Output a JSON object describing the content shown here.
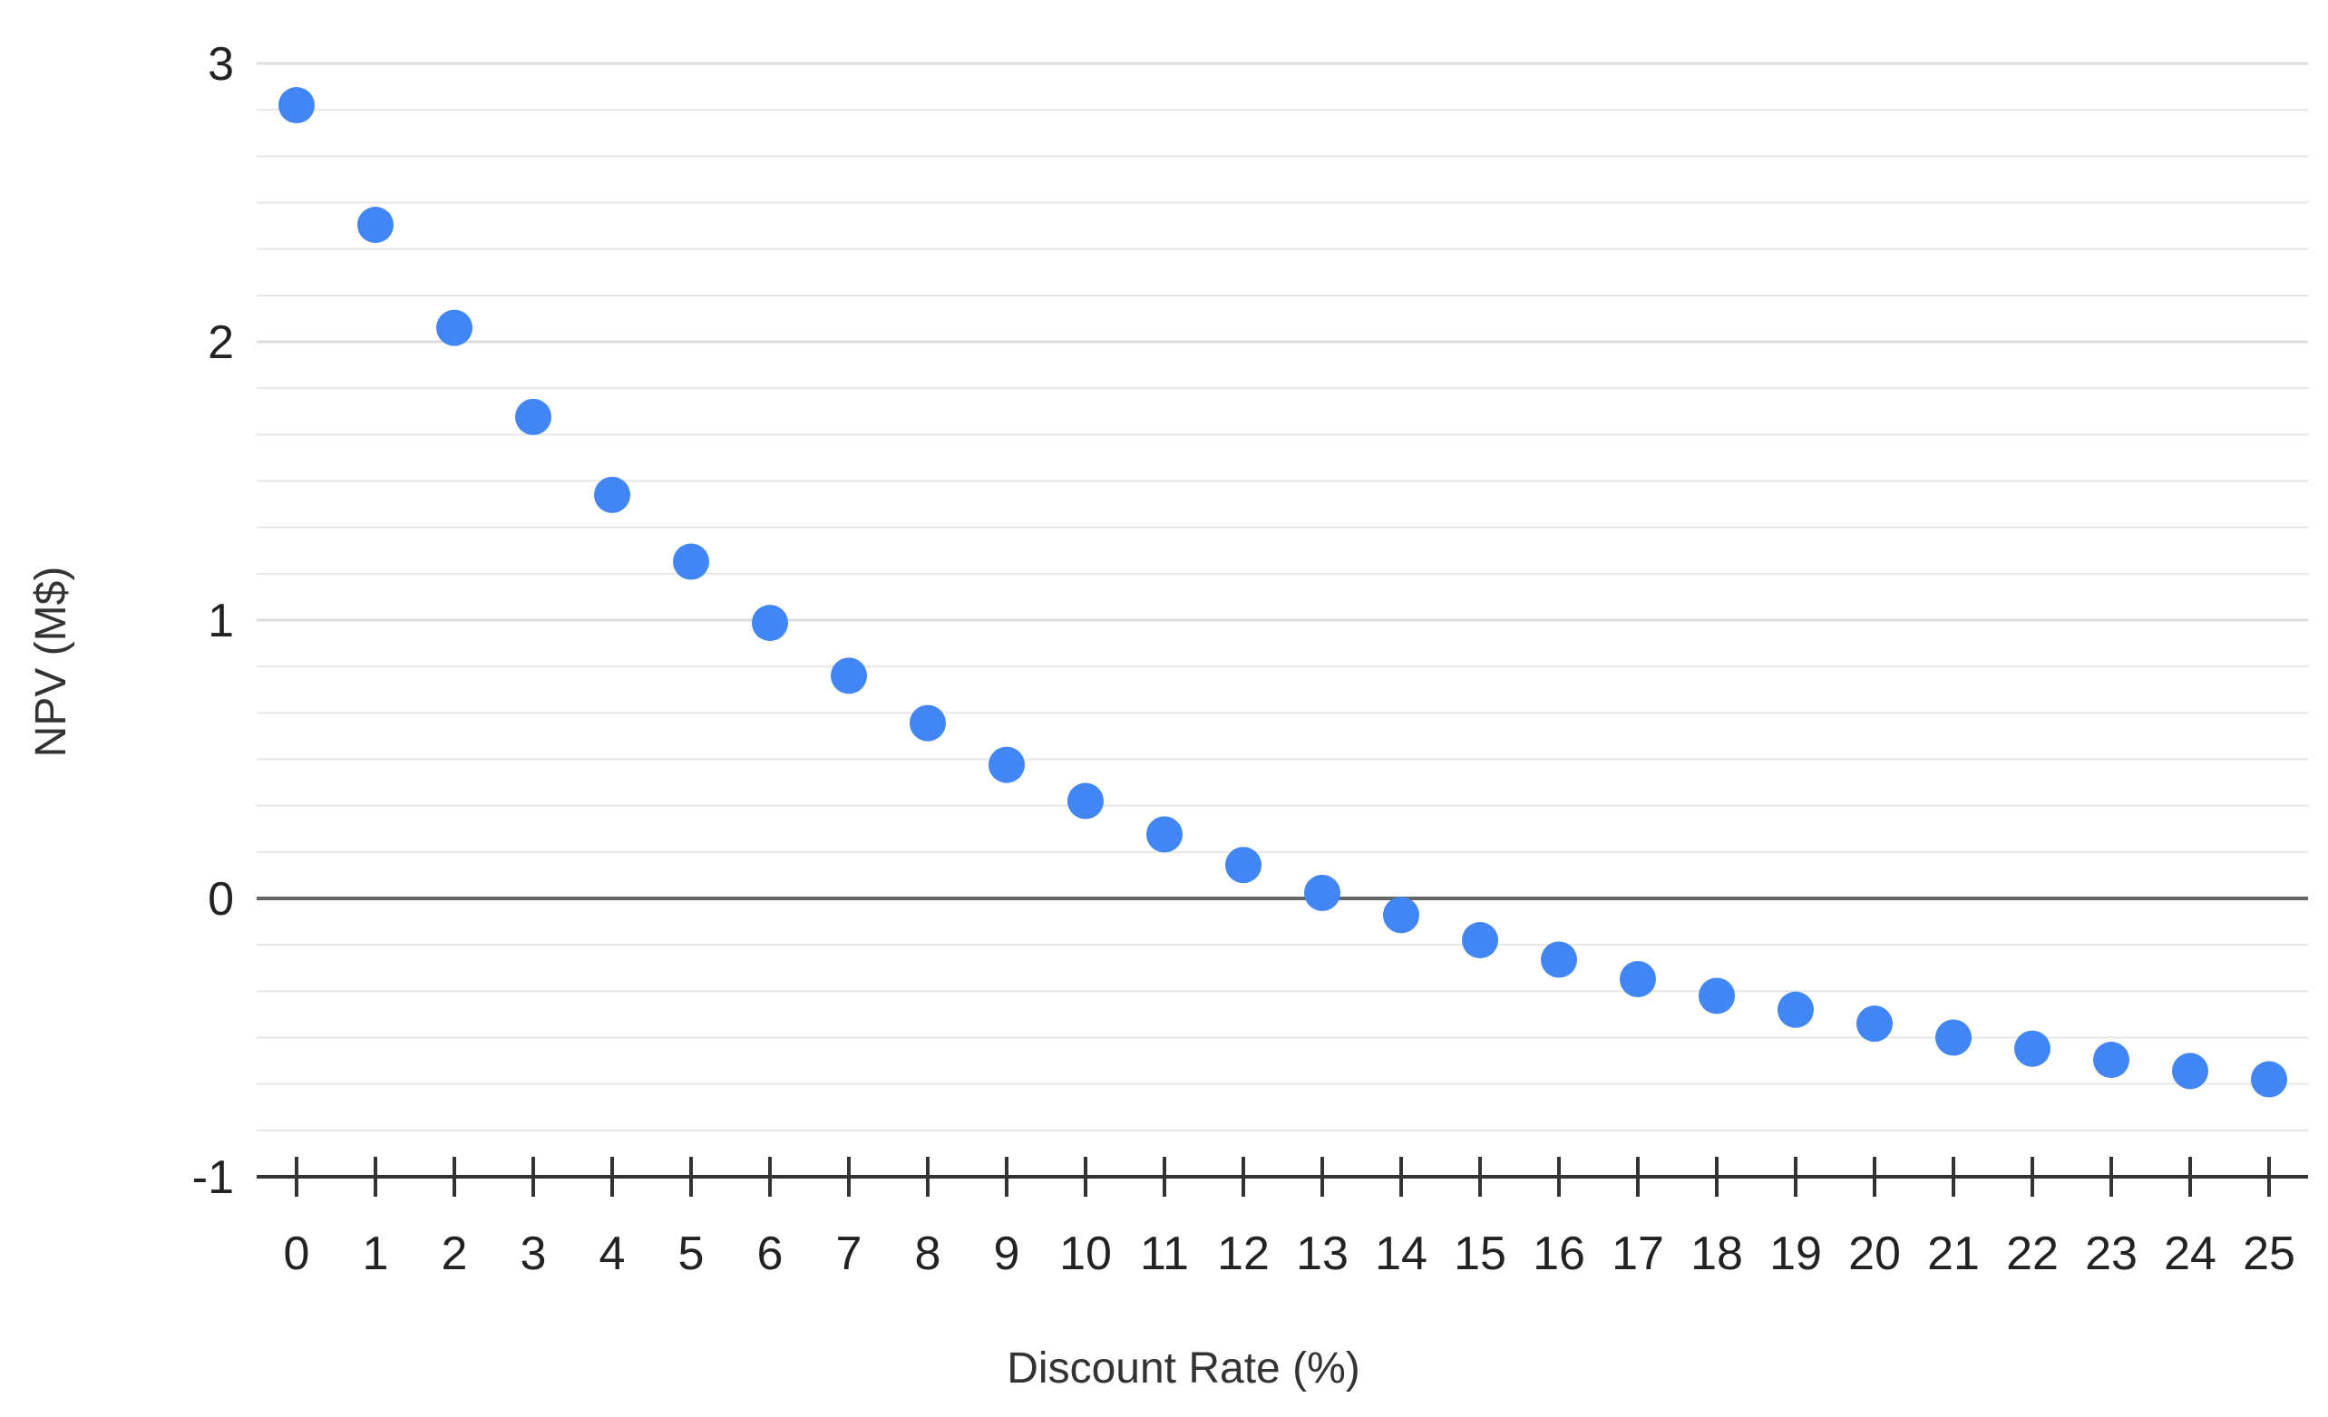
{
  "chart_data": {
    "type": "scatter",
    "title": "",
    "xlabel": "Discount Rate (%)",
    "ylabel": "NPV (M$)",
    "xlim": [
      0,
      25
    ],
    "ylim": [
      -1,
      3
    ],
    "x_ticks": [
      0,
      1,
      2,
      3,
      4,
      5,
      6,
      7,
      8,
      9,
      10,
      11,
      12,
      13,
      14,
      15,
      16,
      17,
      18,
      19,
      20,
      21,
      22,
      23,
      24,
      25
    ],
    "y_ticks": [
      -1,
      0,
      1,
      2,
      3
    ],
    "minor_gridlines_per_major": 6,
    "grid": true,
    "legend": "none",
    "colors": {
      "marker": "#4285f4",
      "gridline": "#e6e6e6",
      "zero_line": "#666666",
      "axis": "#333333"
    },
    "series": [
      {
        "x": [
          0,
          1,
          2,
          3,
          4,
          5,
          6,
          7,
          8,
          9,
          10,
          11,
          12,
          13,
          14,
          15,
          16,
          17,
          18,
          19,
          20,
          21,
          22,
          23,
          24,
          25
        ],
        "y": [
          2.85,
          2.42,
          2.05,
          1.73,
          1.45,
          1.21,
          0.99,
          0.8,
          0.63,
          0.48,
          0.35,
          0.23,
          0.12,
          0.02,
          -0.06,
          -0.15,
          -0.22,
          -0.29,
          -0.35,
          -0.4,
          -0.45,
          -0.5,
          -0.54,
          -0.58,
          -0.62,
          -0.65
        ]
      }
    ]
  }
}
